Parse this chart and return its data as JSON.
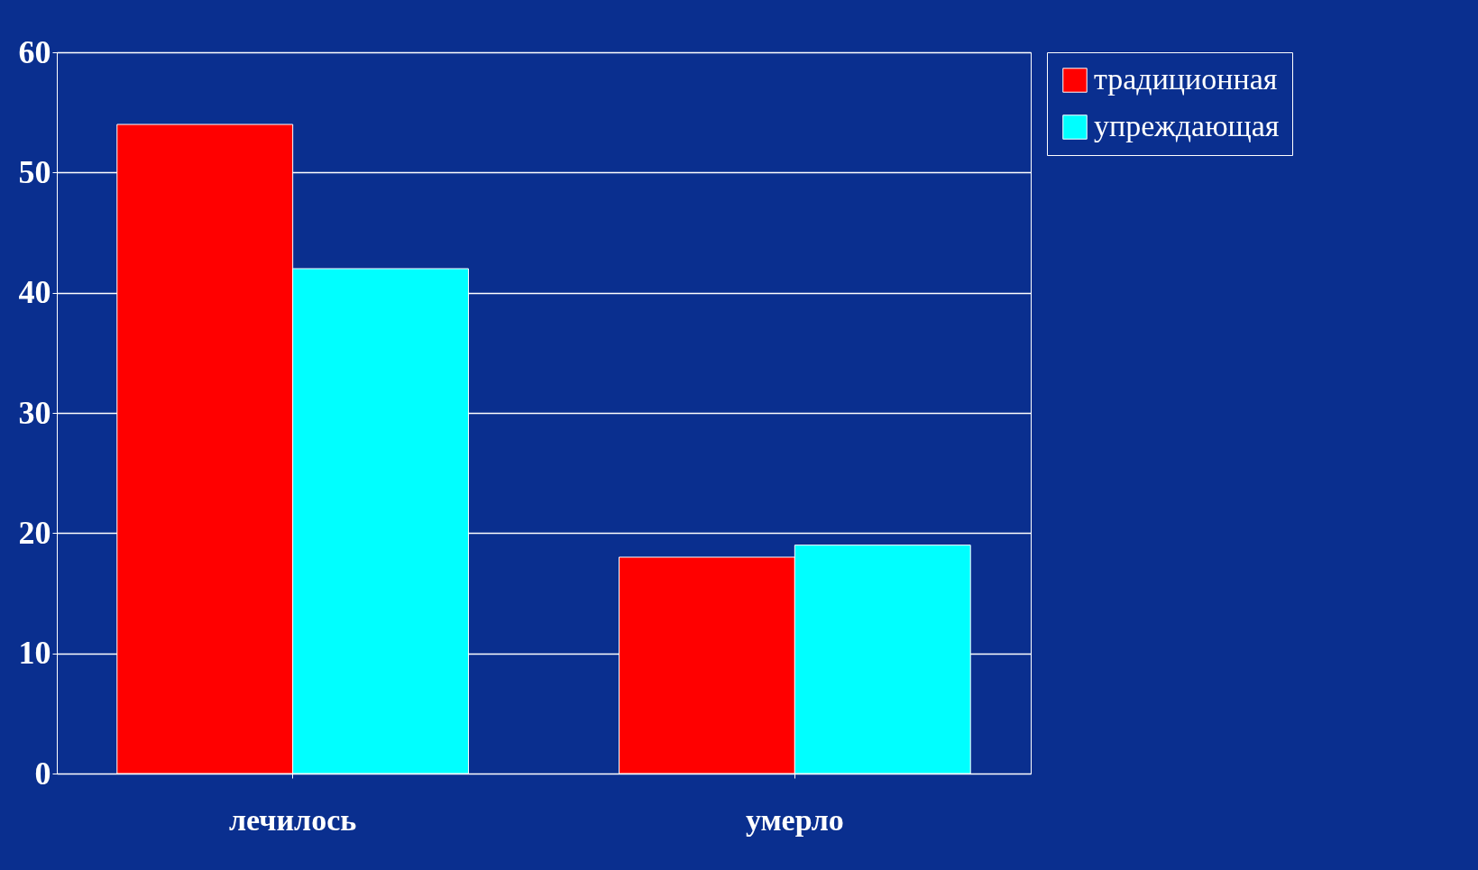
{
  "chart_data": {
    "type": "bar",
    "categories": [
      "лечилось",
      "умерло"
    ],
    "series": [
      {
        "name": "традиционная",
        "color": "#ff0000",
        "values": [
          54,
          18
        ]
      },
      {
        "name": "упреждающая",
        "color": "#00ffff",
        "values": [
          42,
          19
        ]
      }
    ],
    "ylim": [
      0,
      60
    ],
    "yticks": [
      0,
      10,
      20,
      30,
      40,
      50,
      60
    ],
    "grid": "y",
    "legend": "right"
  }
}
